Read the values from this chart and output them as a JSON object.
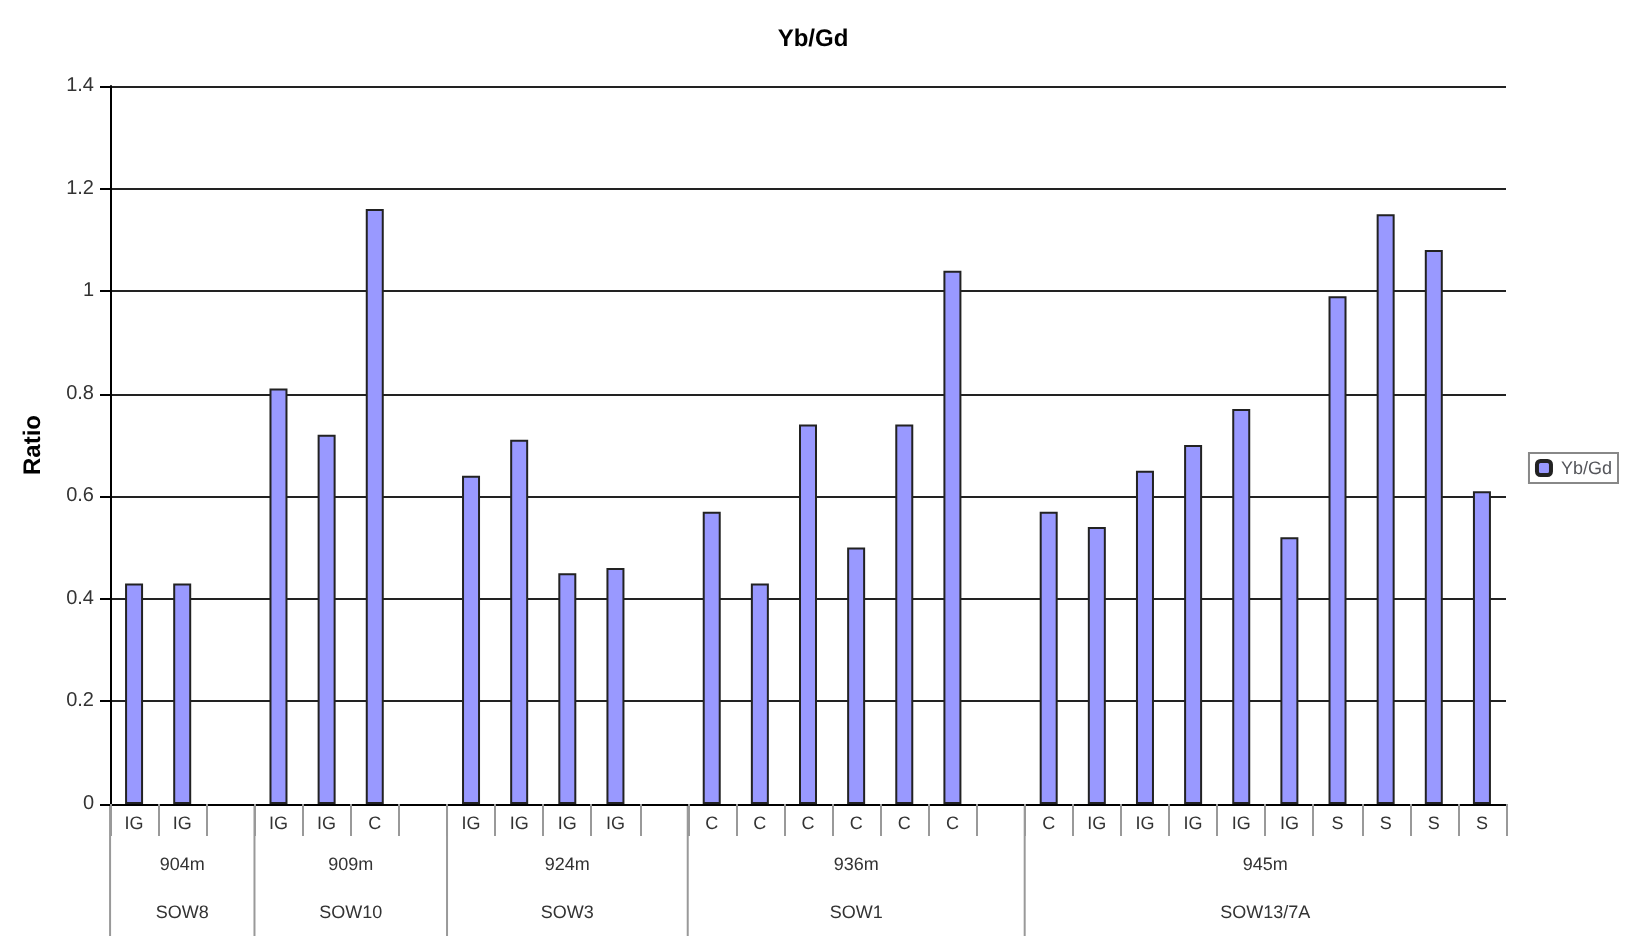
{
  "chart_data": {
    "type": "bar",
    "title": "Yb/Gd",
    "ylabel": "Ratio",
    "categories": [
      "IG",
      "IG",
      null,
      "IG",
      "IG",
      "C",
      null,
      "IG",
      "IG",
      "IG",
      "IG",
      null,
      "C",
      "C",
      "C",
      "C",
      "C",
      "C",
      null,
      "C",
      "IG",
      "IG",
      "IG",
      "IG",
      "IG",
      "S",
      "S",
      "S",
      "S"
    ],
    "series": [
      {
        "name": "Yb/Gd",
        "color": "#9999ff",
        "values": [
          0.43,
          0.43,
          null,
          0.81,
          0.72,
          1.16,
          null,
          0.64,
          0.71,
          0.45,
          0.46,
          null,
          0.57,
          0.43,
          0.74,
          0.5,
          0.74,
          1.04,
          null,
          0.57,
          0.54,
          0.65,
          0.7,
          0.77,
          0.52,
          0.99,
          1.15,
          1.08,
          0.61
        ]
      }
    ],
    "annotations": [
      "904m",
      "SOW8",
      "909m",
      "SOW10",
      "924m",
      "SOW3",
      "936m",
      "SOW1",
      "945m",
      "SOW13/7A"
    ],
    "ylim": [
      0,
      1.4
    ],
    "yticks": [
      0,
      0.2,
      0.4,
      0.6,
      0.8,
      1,
      1.2,
      1.4
    ],
    "grid": "y",
    "legend": "right"
  }
}
